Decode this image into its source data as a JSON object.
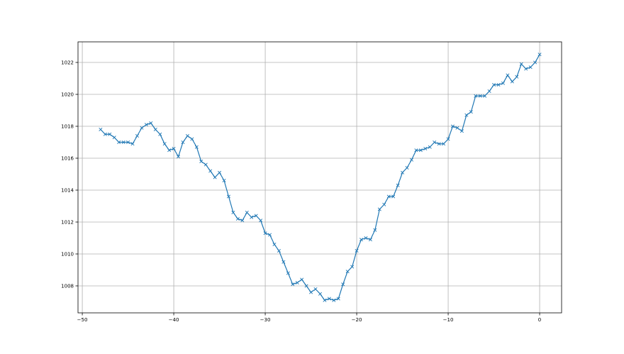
{
  "chart_data": {
    "type": "line",
    "title": "",
    "xlabel": "",
    "ylabel": "",
    "xlim": [
      -50.47,
      2.4
    ],
    "ylim": [
      1006.31,
      1023.29
    ],
    "grid": true,
    "marker": "x",
    "line_color": "#1f77b4",
    "grid_color": "#b0b0b0",
    "xticks": [
      -50,
      -40,
      -30,
      -20,
      -10,
      0
    ],
    "xtick_labels": [
      "−50",
      "−40",
      "−30",
      "−20",
      "−10",
      "0"
    ],
    "yticks": [
      1008,
      1010,
      1012,
      1014,
      1016,
      1018,
      1020,
      1022
    ],
    "ytick_labels": [
      "1008",
      "1010",
      "1012",
      "1014",
      "1016",
      "1018",
      "1020",
      "1022"
    ],
    "x": [
      -48,
      -47.5,
      -47,
      -46.5,
      -46,
      -45.5,
      -45,
      -44.5,
      -44,
      -43.5,
      -43,
      -42.5,
      -42,
      -41.5,
      -41,
      -40.5,
      -40,
      -39.5,
      -39,
      -38.5,
      -38,
      -37.5,
      -37,
      -36.5,
      -36,
      -35.5,
      -35,
      -34.5,
      -34,
      -33.5,
      -33,
      -32.5,
      -32,
      -31.5,
      -31,
      -30.5,
      -30,
      -29.5,
      -29,
      -28.5,
      -28,
      -27.5,
      -27,
      -26.5,
      -26,
      -25.5,
      -25,
      -24.5,
      -24,
      -23.5,
      -23,
      -22.5,
      -22,
      -21.5,
      -21,
      -20.5,
      -20,
      -19.5,
      -19,
      -18.5,
      -18,
      -17.5,
      -17,
      -16.5,
      -16,
      -15.5,
      -15,
      -14.5,
      -14,
      -13.5,
      -13,
      -12.5,
      -12,
      -11.5,
      -11,
      -10.5,
      -10,
      -9.5,
      -9,
      -8.5,
      -8,
      -7.5,
      -7,
      -6.5,
      -6,
      -5.5,
      -5,
      -4.5,
      -4,
      -3.5,
      -3,
      -2.5,
      -2,
      -1.5,
      -1,
      -0.5,
      0
    ],
    "y": [
      1017.8,
      1017.5,
      1017.5,
      1017.3,
      1017.0,
      1017.0,
      1017.0,
      1016.9,
      1017.4,
      1017.9,
      1018.1,
      1018.2,
      1017.8,
      1017.5,
      1016.9,
      1016.5,
      1016.6,
      1016.1,
      1017.0,
      1017.4,
      1017.2,
      1016.7,
      1015.8,
      1015.6,
      1015.2,
      1014.8,
      1015.1,
      1014.6,
      1013.6,
      1012.6,
      1012.2,
      1012.1,
      1012.6,
      1012.3,
      1012.4,
      1012.1,
      1011.3,
      1011.2,
      1010.6,
      1010.2,
      1009.5,
      1008.8,
      1008.1,
      1008.2,
      1008.4,
      1008.0,
      1007.6,
      1007.8,
      1007.5,
      1007.1,
      1007.2,
      1007.1,
      1007.2,
      1008.1,
      1008.9,
      1009.2,
      1010.2,
      1010.9,
      1011.0,
      1010.9,
      1011.5,
      1012.8,
      1013.1,
      1013.6,
      1013.6,
      1014.3,
      1015.1,
      1015.4,
      1015.9,
      1016.5,
      1016.5,
      1016.6,
      1016.7,
      1017.0,
      1016.9,
      1016.9,
      1017.2,
      1018.0,
      1017.9,
      1017.7,
      1018.7,
      1018.9,
      1019.9,
      1019.9,
      1019.9,
      1020.2,
      1020.6,
      1020.6,
      1020.7,
      1021.2,
      1020.8,
      1021.1,
      1021.9,
      1021.6,
      1021.7,
      1022.0,
      1022.5
    ]
  }
}
